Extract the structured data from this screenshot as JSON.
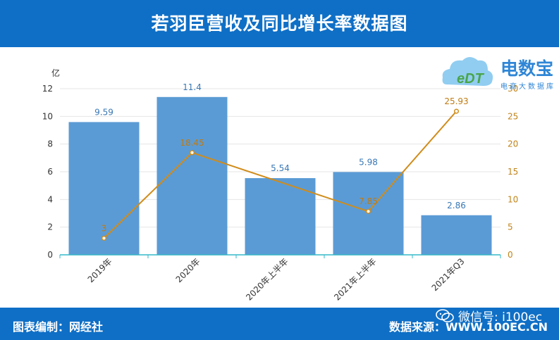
{
  "header": {
    "title": "若羽臣营收及同比增长率数据图"
  },
  "footer": {
    "chart_credit": "图表编制：网经社",
    "source": "数据来源：WWW.100EC.CN"
  },
  "watermark": {
    "wechat": "微信号: i100ec"
  },
  "logo": {
    "brand": "电数宝",
    "tagline": "电商大数据库",
    "mark": "eDT"
  },
  "colors": {
    "header_bg": "#0f6fc6",
    "bar": "#5b9bd5",
    "line": "#d08c1a",
    "left_axis_text": "#333333",
    "right_axis_text": "#c0831a"
  },
  "chart_data": {
    "type": "bar",
    "categories": [
      "2019年",
      "2020年",
      "2020年上半年",
      "2021年上半年",
      "2021年Q3"
    ],
    "left_axis_unit": "亿",
    "ylim_left": [
      0,
      12
    ],
    "yticks_left": [
      0,
      2,
      4,
      6,
      8,
      10,
      12
    ],
    "ylim_right": [
      0,
      30
    ],
    "yticks_right": [
      0,
      5,
      10,
      15,
      20,
      25,
      30
    ],
    "series": [
      {
        "type": "bar",
        "axis": "left",
        "values": [
          9.59,
          11.4,
          5.54,
          5.98,
          2.86
        ],
        "labels": [
          "9.59",
          "11.4",
          "5.54",
          "5.98",
          "2.86"
        ]
      },
      {
        "type": "line",
        "axis": "right",
        "points": [
          [
            0,
            3
          ],
          [
            1,
            18.45
          ],
          [
            3,
            7.85
          ],
          [
            4,
            25.93
          ]
        ],
        "labels": [
          "3",
          "18.45",
          "7.85",
          "25.93"
        ]
      }
    ],
    "grid": true
  }
}
